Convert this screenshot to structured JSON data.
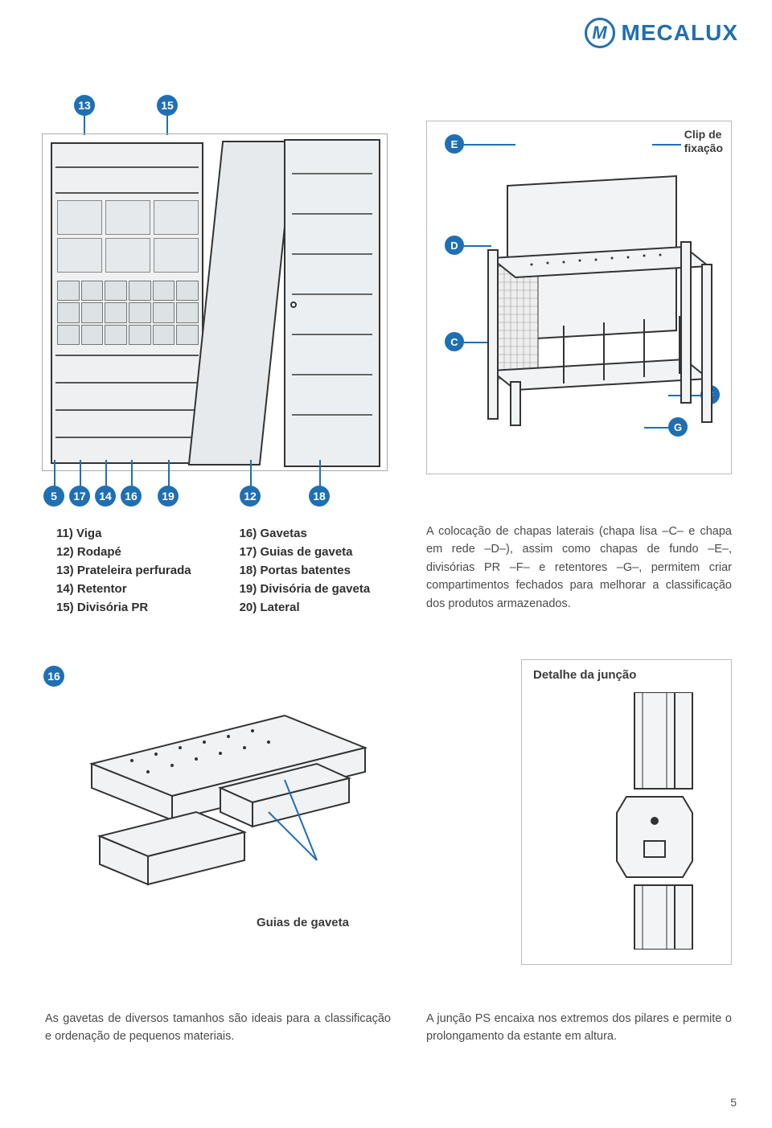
{
  "brand": {
    "name": "MECALUX",
    "icon_letter": "M",
    "color": "#1f6fb3"
  },
  "callouts_top": {
    "b13": "13",
    "b15": "15"
  },
  "callouts_row": [
    "5",
    "17",
    "14",
    "16",
    "19",
    "12",
    "18"
  ],
  "callout_row_offsets": [
    0,
    32,
    64,
    96,
    142,
    244,
    330
  ],
  "lists": {
    "col1": [
      {
        "num": "11)",
        "label": "Viga"
      },
      {
        "num": "12)",
        "label": "Rodapé"
      },
      {
        "num": "13)",
        "label": "Prateleira perfurada"
      },
      {
        "num": "14)",
        "label": "Retentor"
      },
      {
        "num": "15)",
        "label": "Divisória PR"
      }
    ],
    "col2": [
      {
        "num": "16)",
        "label": "Gavetas"
      },
      {
        "num": "17)",
        "label": "Guias de gaveta"
      },
      {
        "num": "18)",
        "label": "Portas batentes"
      },
      {
        "num": "19)",
        "label": "Divisória de gaveta"
      },
      {
        "num": "20)",
        "label": "Lateral"
      }
    ]
  },
  "right_fig": {
    "clip_label_l1": "Clip de",
    "clip_label_l2": "fixação",
    "letters": {
      "E": "E",
      "D": "D",
      "C": "C",
      "F": "F",
      "G": "G"
    }
  },
  "paragraph": "A colocação de chapas laterais (chapa lisa –C– e chapa em rede –D–), assim como chapas de fundo –E–, divisórias PR –F– e retentores –G–, permitem criar compartimentos fechados para melhorar a classificação dos produtos armazenados.",
  "drawer_fig": {
    "badge": "16",
    "label": "Guias de gaveta"
  },
  "junction_fig": {
    "title": "Detalhe da junção"
  },
  "bottom_left": "As gavetas de diversos tamanhos são ideais para a classificação e ordenação de pequenos materiais.",
  "bottom_right": "A junção PS encaixa nos extremos dos pilares e permite o prolongamento da estante em altura.",
  "page_number": "5",
  "colors": {
    "accent": "#1f6fb3",
    "text": "#3a3a3a"
  }
}
